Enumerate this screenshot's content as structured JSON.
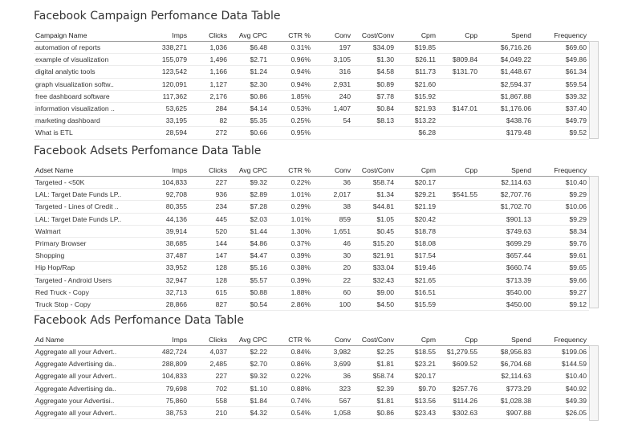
{
  "columns": [
    "Imps",
    "Clicks",
    "Avg CPC",
    "CTR %",
    "Conv",
    "Cost/Conv",
    "Cpm",
    "Cpp",
    "Spend",
    "Frequency"
  ],
  "campaign": {
    "title": "Facebook Campaign Perfomance Data Table",
    "first_col": "Campaign Name",
    "rows": [
      [
        "automation of reports",
        "338,271",
        "1,036",
        "$6.48",
        "0.31%",
        "197",
        "$34.09",
        "$19.85",
        "",
        "$6,716.26",
        "$69.60"
      ],
      [
        "example of visualization",
        "155,079",
        "1,496",
        "$2.71",
        "0.96%",
        "3,105",
        "$1.30",
        "$26.11",
        "$809.84",
        "$4,049.22",
        "$49.86"
      ],
      [
        "digital analytic tools",
        "123,542",
        "1,166",
        "$1.24",
        "0.94%",
        "316",
        "$4.58",
        "$11.73",
        "$131.70",
        "$1,448.67",
        "$61.34"
      ],
      [
        "graph visualization softw..",
        "120,091",
        "1,127",
        "$2.30",
        "0.94%",
        "2,931",
        "$0.89",
        "$21.60",
        "",
        "$2,594.37",
        "$59.54"
      ],
      [
        "free dashboard software",
        "117,362",
        "2,176",
        "$0.86",
        "1.85%",
        "240",
        "$7.78",
        "$15.92",
        "",
        "$1,867.88",
        "$39.32"
      ],
      [
        "information visualization ..",
        "53,625",
        "284",
        "$4.14",
        "0.53%",
        "1,407",
        "$0.84",
        "$21.93",
        "$147.01",
        "$1,176.06",
        "$37.40"
      ],
      [
        "marketing dashboard",
        "33,195",
        "82",
        "$5.35",
        "0.25%",
        "54",
        "$8.13",
        "$13.22",
        "",
        "$438.76",
        "$49.79"
      ],
      [
        "What is ETL",
        "28,594",
        "272",
        "$0.66",
        "0.95%",
        "",
        "",
        "$6.28",
        "",
        "$179.48",
        "$9.52"
      ]
    ]
  },
  "adsets": {
    "title": "Facebook Adsets Perfomance Data Table",
    "first_col": "Adset Name",
    "rows": [
      [
        "Targeted - <50K",
        "104,833",
        "227",
        "$9.32",
        "0.22%",
        "36",
        "$58.74",
        "$20.17",
        "",
        "$2,114.63",
        "$10.40"
      ],
      [
        "LAL: Target Date Funds LP..",
        "92,708",
        "936",
        "$2.89",
        "1.01%",
        "2,017",
        "$1.34",
        "$29.21",
        "$541.55",
        "$2,707.76",
        "$9.29"
      ],
      [
        "Targeted - Lines of Credit ..",
        "80,355",
        "234",
        "$7.28",
        "0.29%",
        "38",
        "$44.81",
        "$21.19",
        "",
        "$1,702.70",
        "$10.06"
      ],
      [
        "LAL: Target Date Funds LP..",
        "44,136",
        "445",
        "$2.03",
        "1.01%",
        "859",
        "$1.05",
        "$20.42",
        "",
        "$901.13",
        "$9.29"
      ],
      [
        "Walmart",
        "39,914",
        "520",
        "$1.44",
        "1.30%",
        "1,651",
        "$0.45",
        "$18.78",
        "",
        "$749.63",
        "$8.34"
      ],
      [
        "Primary Browser",
        "38,685",
        "144",
        "$4.86",
        "0.37%",
        "46",
        "$15.20",
        "$18.08",
        "",
        "$699.29",
        "$9.76"
      ],
      [
        "Shopping",
        "37,487",
        "147",
        "$4.47",
        "0.39%",
        "30",
        "$21.91",
        "$17.54",
        "",
        "$657.44",
        "$9.61"
      ],
      [
        "Hip Hop/Rap",
        "33,952",
        "128",
        "$5.16",
        "0.38%",
        "20",
        "$33.04",
        "$19.46",
        "",
        "$660.74",
        "$9.65"
      ],
      [
        "Targeted - Android Users",
        "32,947",
        "128",
        "$5.57",
        "0.39%",
        "22",
        "$32.43",
        "$21.65",
        "",
        "$713.39",
        "$9.66"
      ],
      [
        "Red Truck - Copy",
        "32,713",
        "615",
        "$0.88",
        "1.88%",
        "60",
        "$9.00",
        "$16.51",
        "",
        "$540.00",
        "$9.27"
      ],
      [
        "Truck Stop - Copy",
        "28,866",
        "827",
        "$0.54",
        "2.86%",
        "100",
        "$4.50",
        "$15.59",
        "",
        "$450.00",
        "$9.12"
      ]
    ]
  },
  "ads": {
    "title": "Facebook Ads Perfomance Data Table",
    "first_col": "Ad Name",
    "rows": [
      [
        "Aggregate all your Advert..",
        "482,724",
        "4,037",
        "$2.22",
        "0.84%",
        "3,982",
        "$2.25",
        "$18.55",
        "$1,279.55",
        "$8,956.83",
        "$199.06"
      ],
      [
        "Aggregate Advertising da..",
        "288,809",
        "2,485",
        "$2.70",
        "0.86%",
        "3,699",
        "$1.81",
        "$23.21",
        "$609.52",
        "$6,704.68",
        "$144.59"
      ],
      [
        "Aggregate all your Advert..",
        "104,833",
        "227",
        "$9.32",
        "0.22%",
        "36",
        "$58.74",
        "$20.17",
        "",
        "$2,114.63",
        "$10.40"
      ],
      [
        "Aggregate Advertising da..",
        "79,698",
        "702",
        "$1.10",
        "0.88%",
        "323",
        "$2.39",
        "$9.70",
        "$257.76",
        "$773.29",
        "$40.92"
      ],
      [
        "Aggregate your Advertisi..",
        "75,860",
        "558",
        "$1.84",
        "0.74%",
        "567",
        "$1.81",
        "$13.56",
        "$114.26",
        "$1,028.38",
        "$49.39"
      ],
      [
        "Aggregate all your Advert..",
        "38,753",
        "210",
        "$4.32",
        "0.54%",
        "1,058",
        "$0.86",
        "$23.43",
        "$302.63",
        "$907.88",
        "$26.05"
      ]
    ]
  }
}
